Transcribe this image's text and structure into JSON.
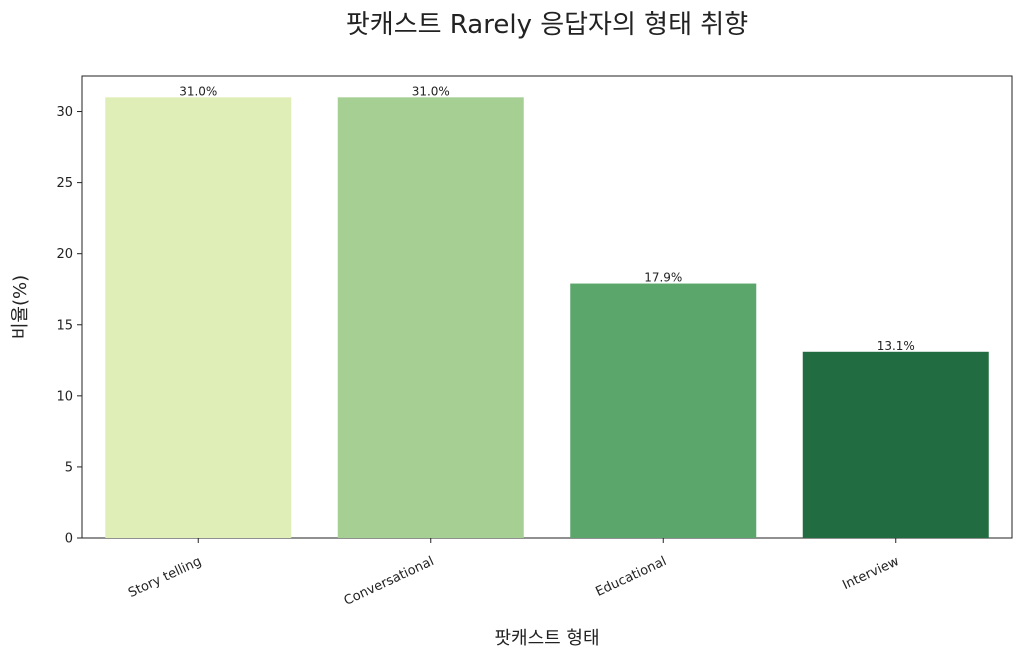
{
  "chart_data": {
    "type": "bar",
    "title": "팟캐스트 Rarely 응답자의 형태 취향",
    "xlabel": "팟캐스트 형태",
    "ylabel": "비율(%)",
    "categories": [
      "Story telling",
      "Conversational",
      "Educational",
      "Interview"
    ],
    "values": [
      31.0,
      31.0,
      17.9,
      13.1
    ],
    "data_labels": [
      "31.0%",
      "31.0%",
      "17.9%",
      "13.1%"
    ],
    "colors": [
      "#dfedb6",
      "#a6cf93",
      "#5aa66b",
      "#216d41"
    ],
    "ylim": [
      0,
      32.5
    ],
    "yticks": [
      0,
      5,
      10,
      15,
      20,
      25,
      30
    ],
    "grid": false,
    "legend": "none",
    "x_tick_rotation": "tilted"
  }
}
